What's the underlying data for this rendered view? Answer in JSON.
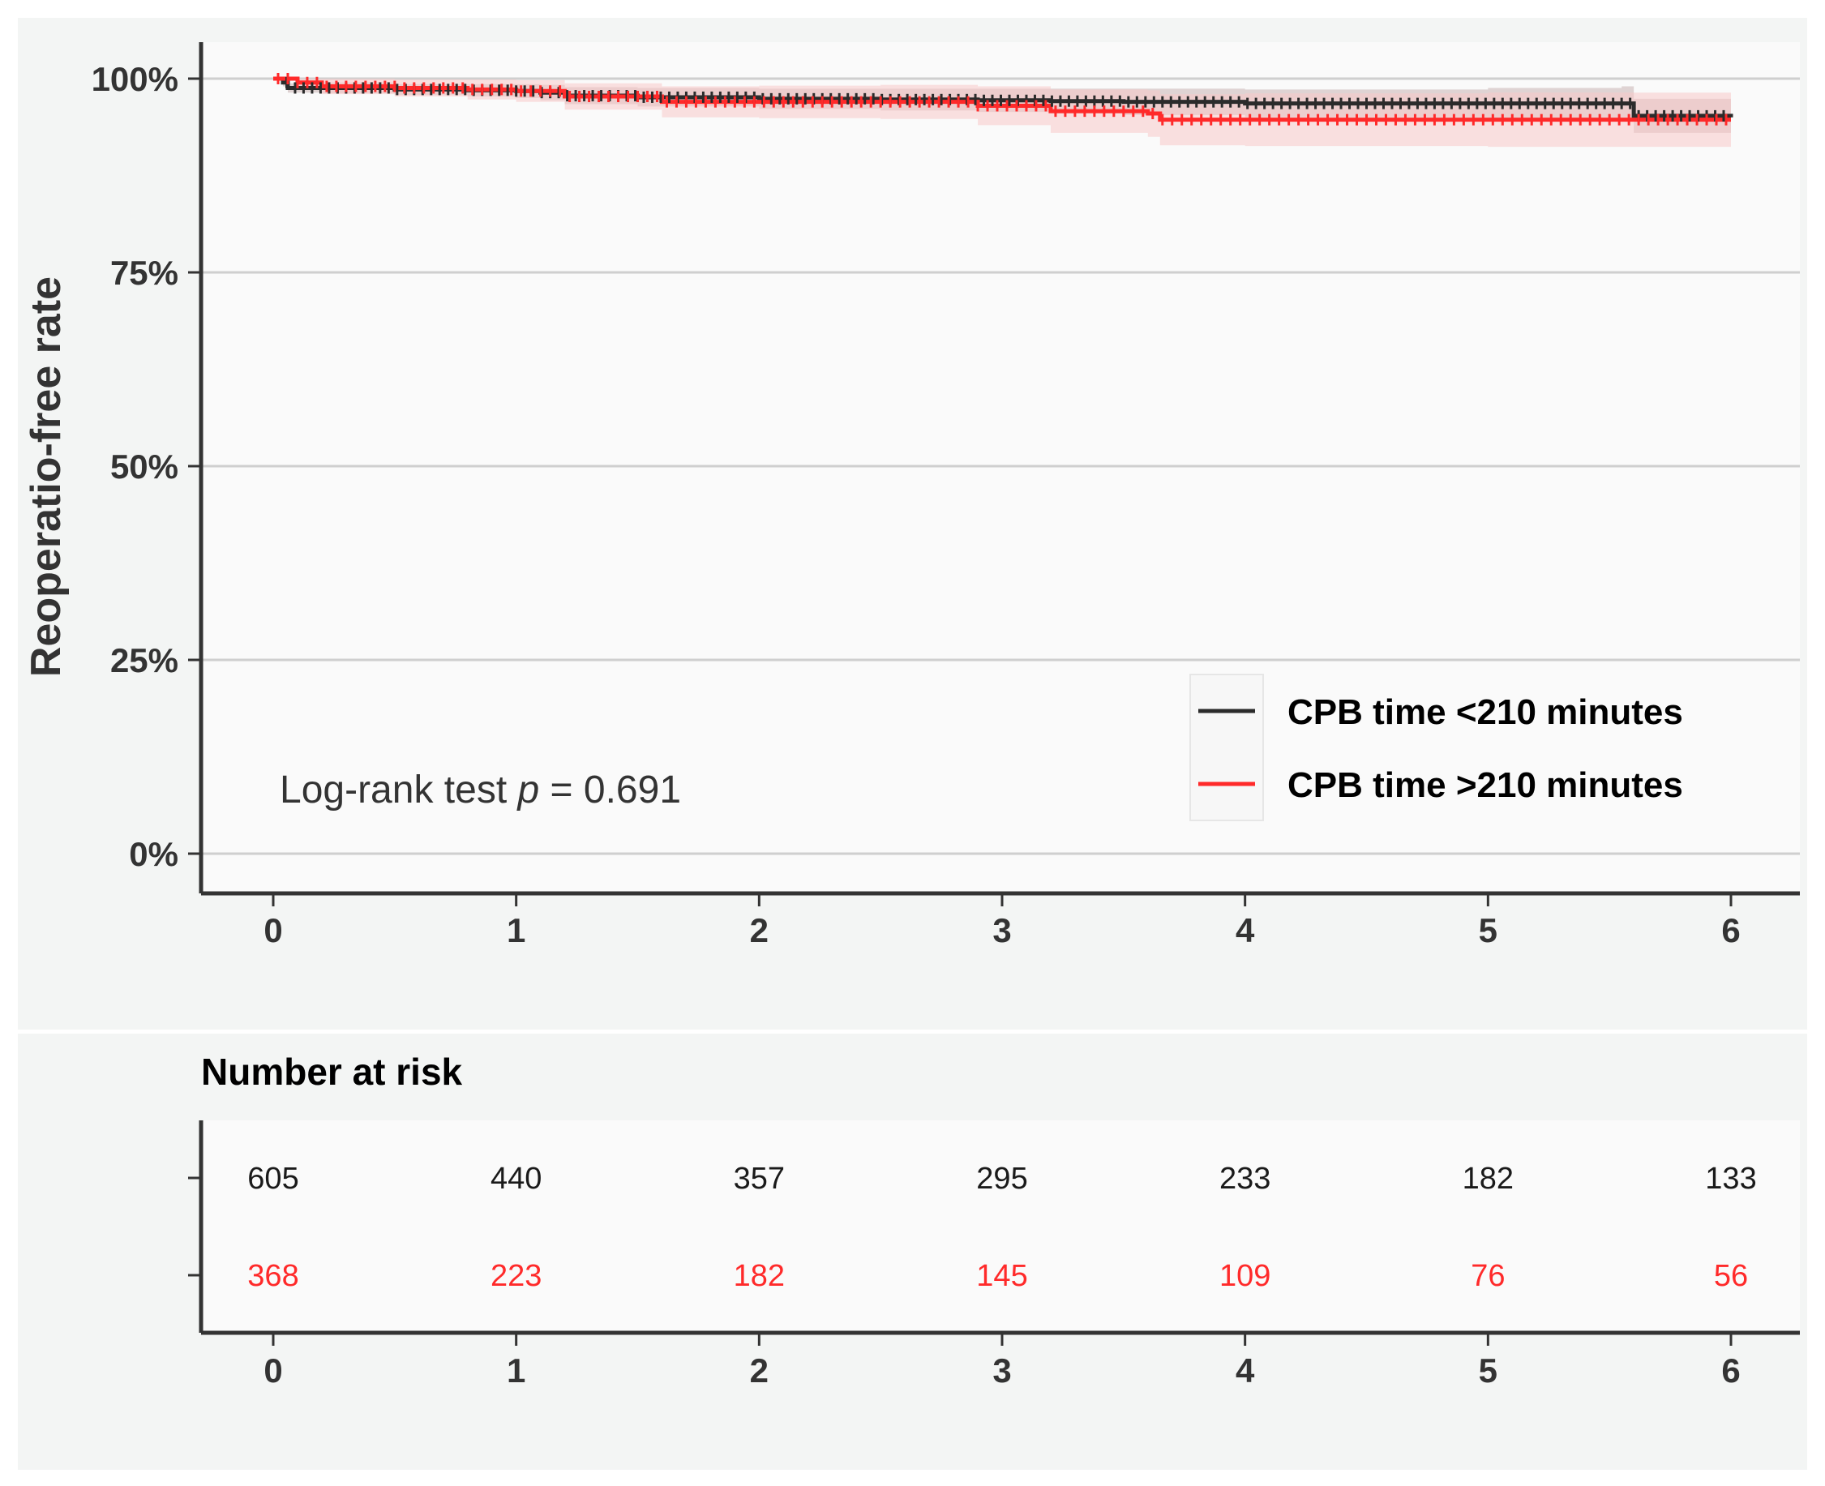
{
  "chart_data": [
    {
      "type": "line",
      "subtype": "kaplan-meier",
      "ylabel": "Reoperatio-free rate",
      "xlabel": "",
      "x_ticks": [
        "0",
        "1",
        "2",
        "3",
        "4",
        "5",
        "6"
      ],
      "y_ticks": [
        "0%",
        "25%",
        "50%",
        "75%",
        "100%"
      ],
      "xlim": [
        0,
        6
      ],
      "ylim": [
        0,
        1
      ],
      "grid": "horizontal",
      "legend_position": "bottom-right",
      "annotation": {
        "prefix": "Log-rank test ",
        "p_symbol": "p",
        "equals": " = ",
        "value": "0.691"
      },
      "series": [
        {
          "name": "CPB time <210 minutes",
          "color": "#2b2b2b",
          "band_color": "#c9b3b3",
          "x": [
            0,
            0.04,
            0.06,
            0.2,
            0.5,
            0.8,
            1.0,
            1.1,
            1.2,
            1.5,
            2.0,
            2.5,
            2.9,
            3.2,
            3.5,
            4.0,
            5.0,
            5.55,
            5.6,
            6.0
          ],
          "y": [
            1.0,
            0.995,
            0.988,
            0.988,
            0.986,
            0.985,
            0.984,
            0.982,
            0.978,
            0.976,
            0.974,
            0.973,
            0.972,
            0.971,
            0.97,
            0.968,
            0.968,
            0.968,
            0.952,
            0.95
          ],
          "lower": [
            1.0,
            0.99,
            0.982,
            0.981,
            0.979,
            0.977,
            0.975,
            0.972,
            0.967,
            0.964,
            0.961,
            0.959,
            0.957,
            0.955,
            0.953,
            0.95,
            0.948,
            0.946,
            0.93,
            0.928
          ],
          "upper": [
            1.0,
            1.0,
            0.994,
            0.995,
            0.993,
            0.993,
            0.993,
            0.992,
            0.989,
            0.988,
            0.987,
            0.987,
            0.987,
            0.987,
            0.987,
            0.986,
            0.988,
            0.99,
            0.974,
            0.972
          ]
        },
        {
          "name": "CPB time >210 minutes",
          "color": "#ff2a2a",
          "band_color": "#f8c8c8",
          "x": [
            0,
            0.1,
            0.2,
            0.5,
            0.8,
            1.0,
            1.2,
            1.6,
            2.0,
            2.5,
            2.9,
            3.2,
            3.6,
            3.65,
            4.0,
            5.0,
            6.0
          ],
          "y": [
            1.0,
            0.995,
            0.99,
            0.988,
            0.986,
            0.984,
            0.977,
            0.97,
            0.97,
            0.97,
            0.965,
            0.958,
            0.955,
            0.947,
            0.947,
            0.947,
            0.947
          ],
          "lower": [
            1.0,
            0.988,
            0.98,
            0.977,
            0.973,
            0.97,
            0.96,
            0.95,
            0.949,
            0.948,
            0.94,
            0.93,
            0.925,
            0.914,
            0.913,
            0.912,
            0.91
          ],
          "upper": [
            1.0,
            1.0,
            1.0,
            0.999,
            0.999,
            0.998,
            0.994,
            0.99,
            0.991,
            0.992,
            0.99,
            0.986,
            0.985,
            0.98,
            0.981,
            0.982,
            0.984
          ]
        }
      ]
    },
    {
      "type": "table",
      "title": "Number at risk",
      "x_ticks": [
        "0",
        "1",
        "2",
        "3",
        "4",
        "5",
        "6"
      ],
      "rows": [
        {
          "color": "#1a1a1a",
          "values": [
            "605",
            "440",
            "357",
            "295",
            "233",
            "182",
            "133"
          ]
        },
        {
          "color": "#ff2a2a",
          "values": [
            "368",
            "223",
            "182",
            "145",
            "109",
            "76",
            "56"
          ]
        }
      ]
    }
  ]
}
